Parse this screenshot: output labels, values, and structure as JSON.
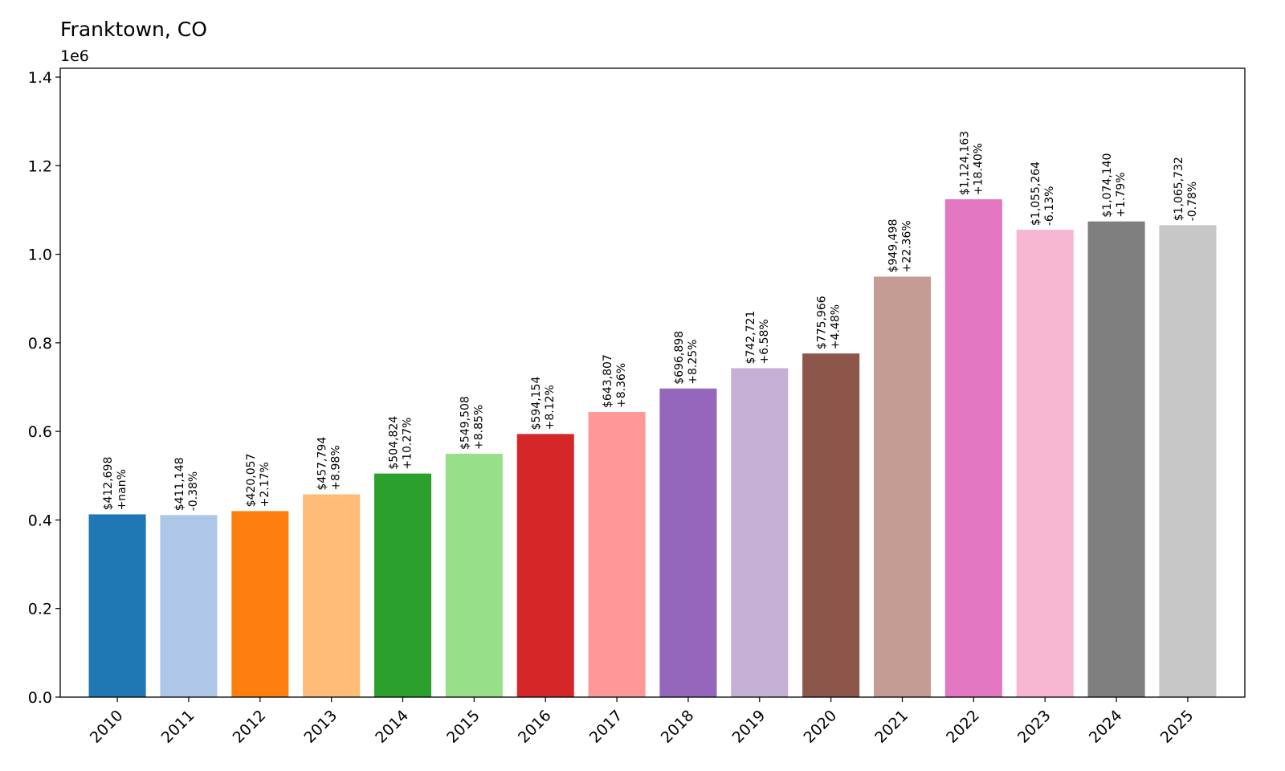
{
  "chart_data": {
    "type": "bar",
    "title": "Franktown, CO",
    "scale_label": "1e6",
    "xlabel": "",
    "ylabel": "",
    "ylim": [
      0,
      1420000
    ],
    "yticks": [
      "0.0",
      "0.2",
      "0.4",
      "0.6",
      "0.8",
      "1.0",
      "1.2",
      "1.4"
    ],
    "ytick_values": [
      0,
      200000,
      400000,
      600000,
      800000,
      1000000,
      1200000,
      1400000
    ],
    "categories": [
      "2010",
      "2011",
      "2012",
      "2013",
      "2014",
      "2015",
      "2016",
      "2017",
      "2018",
      "2019",
      "2020",
      "2021",
      "2022",
      "2023",
      "2024",
      "2025"
    ],
    "values": [
      412698,
      411148,
      420057,
      457794,
      504824,
      549508,
      594154,
      643807,
      696898,
      742721,
      775966,
      949498,
      1124163,
      1055264,
      1074140,
      1065732
    ],
    "value_labels": [
      "$412,698",
      "$411,148",
      "$420,057",
      "$457,794",
      "$504,824",
      "$549,508",
      "$594,154",
      "$643,807",
      "$696,898",
      "$742,721",
      "$775,966",
      "$949,498",
      "$1,124,163",
      "$1,055,264",
      "$1,074,140",
      "$1,065,732"
    ],
    "change_labels": [
      "+nan%",
      "-0.38%",
      "+2.17%",
      "+8.98%",
      "+10.27%",
      "+8.85%",
      "+8.12%",
      "+8.36%",
      "+8.25%",
      "+6.58%",
      "+4.48%",
      "+22.36%",
      "+18.40%",
      "-6.13%",
      "+1.79%",
      "-0.78%"
    ],
    "colors": [
      "#1f77b4",
      "#aec7e8",
      "#ff7f0e",
      "#ffbb78",
      "#2ca02c",
      "#98df8a",
      "#d62728",
      "#ff9896",
      "#9467bd",
      "#c5b0d5",
      "#8c564b",
      "#c49c94",
      "#e377c2",
      "#f7b6d2",
      "#7f7f7f",
      "#c7c7c7"
    ],
    "grid": false,
    "legend": "none"
  }
}
